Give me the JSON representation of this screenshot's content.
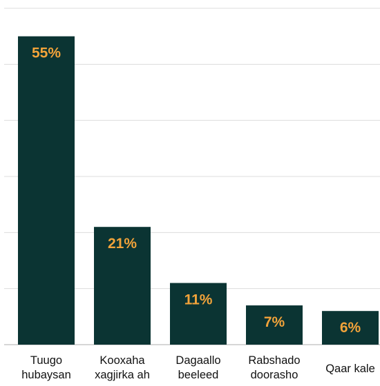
{
  "chart_data": {
    "type": "bar",
    "categories": [
      [
        "Tuugo",
        "hubaysan"
      ],
      [
        "Kooxaha",
        "xagjirka ah"
      ],
      [
        "Dagaallo",
        "beeleed"
      ],
      [
        "Rabshado",
        "doorasho"
      ],
      [
        "Qaar kale"
      ]
    ],
    "values": [
      55,
      21,
      11,
      7,
      6
    ],
    "value_labels": [
      "55%",
      "21%",
      "11%",
      "7%",
      "6%"
    ],
    "ylim": [
      0,
      60
    ],
    "grid": true,
    "title": "",
    "xlabel": "",
    "ylabel": "",
    "bar_color": "#0b3433",
    "label_color": "#f2a33a",
    "grid_color": "#dcdcdc"
  }
}
